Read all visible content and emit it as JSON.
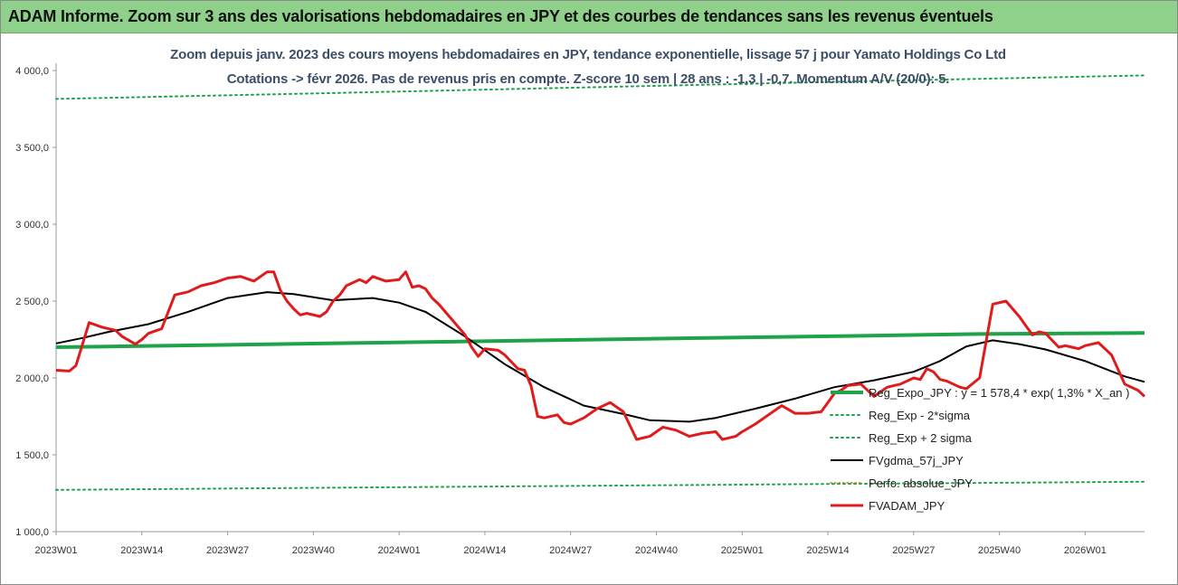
{
  "banner": {
    "title": "ADAM Informe. Zoom sur 3 ans des valorisations hebdomadaires en JPY et des courbes de tendances sans les revenus éventuels"
  },
  "chart_data": {
    "type": "line",
    "title": "Zoom depuis janv. 2023 des cours moyens hebdomadaires en JPY, tendance exponentielle, lissage 57 j pour Yamato Holdings Co Ltd",
    "subtitle": "Cotations -> févr 2026.  Pas de revenus pris en compte. Z-score 10 sem | 28 ans : -1,3 | -0,7. Momentum A/V (20/0): 5.",
    "xlabel": "",
    "ylabel": "",
    "ylim": [
      1000,
      4000
    ],
    "yticks": [
      "1 000,0",
      "1 500,0",
      "2 000,0",
      "2 500,0",
      "3 000,0",
      "3 500,0",
      "4 000,0"
    ],
    "ytick_values": [
      1000,
      1500,
      2000,
      2500,
      3000,
      3500,
      4000
    ],
    "xticks": [
      "2023W01",
      "2023W14",
      "2023W27",
      "2023W40",
      "2024W01",
      "2024W14",
      "2024W27",
      "2024W40",
      "2025W01",
      "2025W14",
      "2025W27",
      "2025W40",
      "2026W01"
    ],
    "xtick_index": [
      0,
      13,
      26,
      39,
      52,
      65,
      78,
      91,
      104,
      117,
      130,
      143,
      156
    ],
    "n_weeks": 166,
    "grid": false,
    "legend_position": "right",
    "series": [
      {
        "name": "Reg_Expo_JPY : y = 1 578,4 * exp( 1,3% * X_an )",
        "color": "#1fa34a",
        "style": "solid",
        "width": 4,
        "x": [
          0,
          20,
          40,
          60,
          80,
          100,
          120,
          140,
          165
        ],
        "values": [
          2200,
          2212,
          2224,
          2236,
          2249,
          2261,
          2273,
          2286,
          2293
        ]
      },
      {
        "name": "Reg_Exp - 2*sigma",
        "color": "#1fa34a",
        "style": "dotted",
        "width": 2,
        "x": [
          0,
          40,
          80,
          120,
          165
        ],
        "values": [
          1272,
          1285,
          1298,
          1311,
          1325
        ]
      },
      {
        "name": "Reg_Exp + 2 sigma",
        "color": "#1fa34a",
        "style": "dotted",
        "width": 2,
        "x": [
          0,
          40,
          80,
          120,
          165
        ],
        "values": [
          3815,
          3852,
          3890,
          3928,
          3968
        ]
      },
      {
        "name": "FVgdma_57j_JPY",
        "color": "#000000",
        "style": "solid",
        "width": 2,
        "x": [
          0,
          4,
          8,
          14,
          20,
          26,
          32,
          36,
          42,
          48,
          52,
          56,
          62,
          68,
          74,
          80,
          86,
          90,
          96,
          100,
          106,
          112,
          118,
          124,
          130,
          134,
          138,
          142,
          146,
          150,
          156,
          162,
          165
        ],
        "values": [
          2225,
          2260,
          2300,
          2350,
          2430,
          2520,
          2558,
          2545,
          2505,
          2520,
          2490,
          2430,
          2270,
          2090,
          1940,
          1820,
          1765,
          1725,
          1715,
          1740,
          1800,
          1865,
          1940,
          1985,
          2040,
          2110,
          2205,
          2245,
          2220,
          2185,
          2110,
          2010,
          1975
        ]
      },
      {
        "name": "Perfo. absolue_JPY",
        "color": "#c87b2c",
        "style": "dotted",
        "width": 1.5,
        "x": [],
        "values": []
      },
      {
        "name": "FVADAM_JPY",
        "color": "#e01b1b",
        "style": "solid",
        "width": 3,
        "x": [
          0,
          2,
          3,
          5,
          7,
          9,
          10,
          12,
          13,
          14,
          16,
          18,
          20,
          22,
          24,
          26,
          28,
          30,
          32,
          33,
          34,
          35,
          36,
          37,
          38,
          40,
          41,
          42,
          43,
          44,
          46,
          47,
          48,
          50,
          52,
          53,
          54,
          55,
          56,
          57,
          58,
          60,
          62,
          63,
          64,
          65,
          67,
          68,
          70,
          71,
          72,
          73,
          74,
          76,
          77,
          78,
          80,
          82,
          84,
          86,
          88,
          90,
          92,
          94,
          96,
          98,
          100,
          101,
          102,
          103,
          104,
          106,
          108,
          110,
          112,
          114,
          116,
          117,
          118,
          119,
          120,
          122,
          124,
          126,
          128,
          130,
          131,
          132,
          133,
          134,
          135,
          136,
          137,
          138,
          140,
          142,
          144,
          145,
          146,
          147,
          148,
          149,
          150,
          152,
          153,
          154,
          155,
          156,
          158,
          160,
          162,
          164,
          165
        ],
        "values": [
          2050,
          2045,
          2080,
          2360,
          2330,
          2310,
          2270,
          2220,
          2250,
          2290,
          2320,
          2540,
          2560,
          2600,
          2620,
          2650,
          2660,
          2630,
          2690,
          2690,
          2570,
          2500,
          2450,
          2410,
          2420,
          2400,
          2430,
          2500,
          2540,
          2600,
          2640,
          2620,
          2660,
          2630,
          2640,
          2690,
          2590,
          2600,
          2580,
          2520,
          2480,
          2380,
          2280,
          2200,
          2140,
          2190,
          2180,
          2150,
          2060,
          2050,
          1950,
          1750,
          1740,
          1760,
          1710,
          1700,
          1740,
          1800,
          1840,
          1780,
          1600,
          1620,
          1680,
          1660,
          1620,
          1640,
          1650,
          1600,
          1610,
          1620,
          1650,
          1700,
          1760,
          1820,
          1770,
          1770,
          1780,
          1840,
          1900,
          1920,
          1950,
          1960,
          1880,
          1940,
          1960,
          2000,
          1990,
          2060,
          2040,
          1990,
          1980,
          1960,
          1940,
          1930,
          2000,
          2480,
          2500,
          2450,
          2400,
          2340,
          2280,
          2300,
          2290,
          2200,
          2210,
          2200,
          2190,
          2210,
          2230,
          2150,
          1960,
          1920,
          1880
        ]
      }
    ]
  }
}
